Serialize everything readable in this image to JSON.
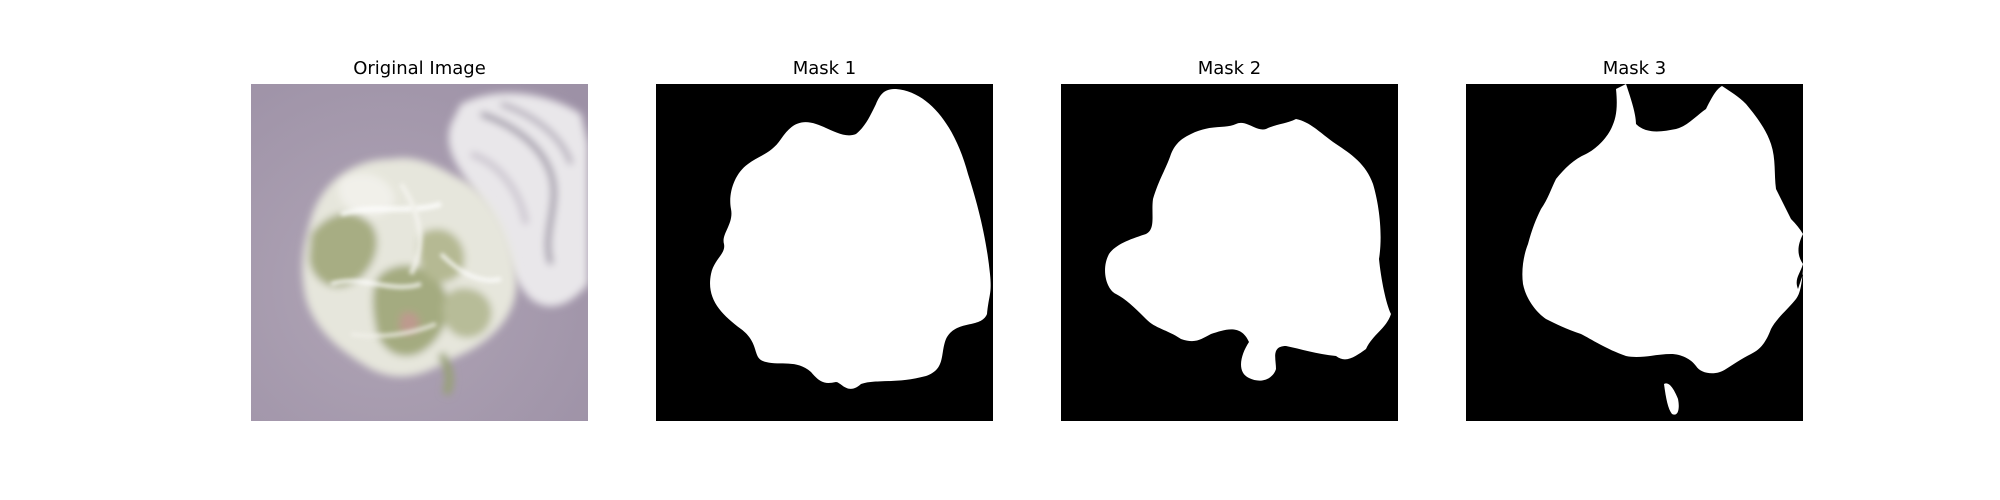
{
  "panels": [
    {
      "title": "Original Image",
      "kind": "photo"
    },
    {
      "title": "Mask 1",
      "kind": "mask"
    },
    {
      "title": "Mask 2",
      "kind": "mask"
    },
    {
      "title": "Mask 3",
      "kind": "mask"
    }
  ],
  "colors": {
    "background": "#ffffff",
    "photo_backdrop": "#a69aae",
    "mask_background": "#000000",
    "mask_foreground": "#ffffff",
    "leaf_green": "#a3ad7d",
    "leaf_white": "#eceae6"
  }
}
